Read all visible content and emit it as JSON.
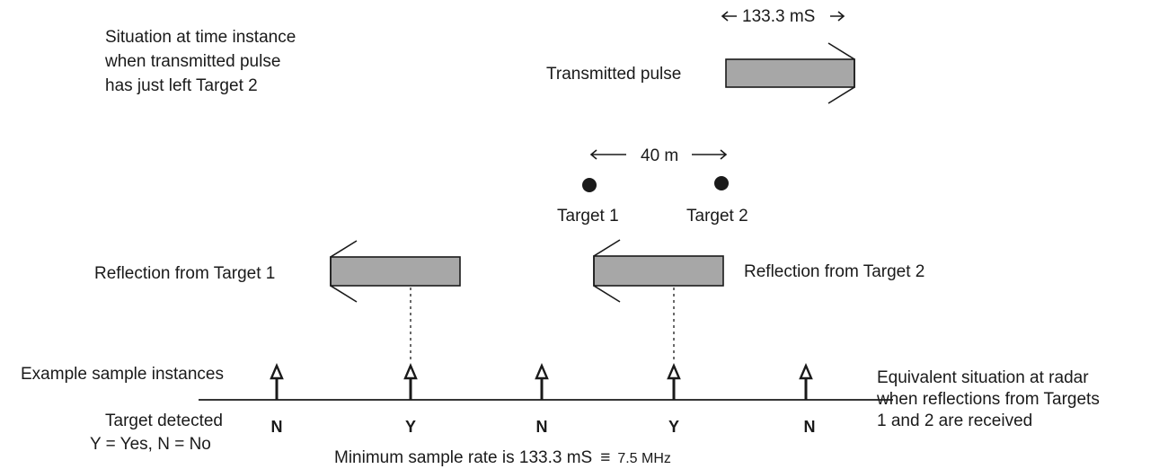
{
  "situation_note": [
    "Situation at time instance",
    "when transmitted pulse",
    "has just left Target 2"
  ],
  "pulse_width_label": "133.3 mS",
  "transmitted_pulse_label": "Transmitted pulse",
  "separation_label": "40 m",
  "targets": [
    {
      "label": "Target 1"
    },
    {
      "label": "Target 2"
    }
  ],
  "reflections": [
    {
      "label": "Reflection from Target 1"
    },
    {
      "label": "Reflection from Target 2"
    }
  ],
  "sample_instances_label": "Example sample instances",
  "detections": [
    "N",
    "Y",
    "N",
    "Y",
    "N"
  ],
  "target_detected_label": [
    "Target detected",
    "Y = Yes, N = No"
  ],
  "equivalent_situation_note": [
    "Equivalent situation at radar",
    "when reflections from Targets",
    "1 and 2 are received"
  ],
  "min_sample_rate_label": "Minimum sample rate is 133.3 mS",
  "equiv_symbol": "≡",
  "min_sample_rate_value": "7.5 MHz",
  "colors": {
    "pulse_fill": "#a7a7a7",
    "ink": "#1a1a1a"
  }
}
